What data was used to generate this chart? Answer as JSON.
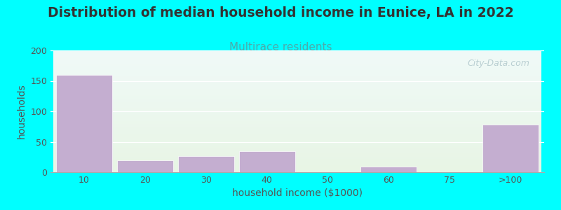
{
  "title": "Distribution of median household income in Eunice, LA in 2022",
  "subtitle": "Multirace residents",
  "xlabel": "household income ($1000)",
  "ylabel": "households",
  "background_color": "#00FFFF",
  "bar_color": "#c4aed0",
  "bar_edge_color": "#b89cc0",
  "categories": [
    "10",
    "20",
    "30",
    "40",
    "50",
    "60",
    "75",
    ">100"
  ],
  "values": [
    160,
    20,
    26,
    35,
    0,
    9,
    0,
    78
  ],
  "ylim": [
    0,
    200
  ],
  "yticks": [
    0,
    50,
    100,
    150,
    200
  ],
  "title_fontsize": 13.5,
  "subtitle_fontsize": 11,
  "subtitle_color": "#4aacac",
  "axis_label_fontsize": 10,
  "tick_fontsize": 9,
  "tick_color": "#555555",
  "watermark_text": "City-Data.com",
  "watermark_color": "#b0c8cc",
  "gradient_top": "#f0faf8",
  "gradient_bottom": "#e8f5e5"
}
